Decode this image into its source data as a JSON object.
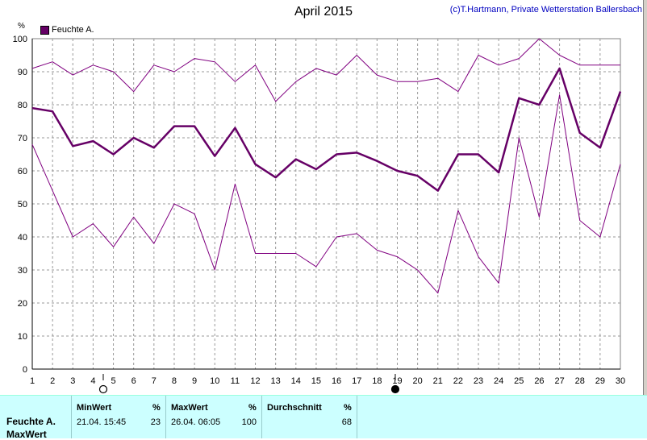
{
  "chart_data": {
    "type": "line",
    "title": "April 2015",
    "credit": "(c)T.Hartmann, Private Wetterstation Ballersbach",
    "unit": "%",
    "legend": "Feuchte A.",
    "ylim": [
      0,
      100
    ],
    "yticks": [
      0,
      10,
      20,
      30,
      40,
      50,
      60,
      70,
      80,
      90,
      100
    ],
    "x": [
      1,
      2,
      3,
      4,
      5,
      6,
      7,
      8,
      9,
      10,
      11,
      12,
      13,
      14,
      15,
      16,
      17,
      18,
      19,
      20,
      21,
      22,
      23,
      24,
      25,
      26,
      27,
      28,
      29,
      30
    ],
    "grid": true,
    "series": [
      {
        "role": "max",
        "color": "#800080",
        "width": 1,
        "values": [
          91,
          93,
          89,
          92,
          90,
          84,
          92,
          90,
          94,
          93,
          87,
          92,
          81,
          87,
          91,
          89,
          95,
          89,
          87,
          87,
          88,
          84,
          95,
          92,
          94,
          100,
          95,
          92,
          92,
          92
        ]
      },
      {
        "role": "mean",
        "color": "#660066",
        "width": 2.5,
        "values": [
          79,
          78,
          67.5,
          69,
          65,
          70,
          67,
          73.5,
          73.5,
          64.5,
          73,
          62,
          58,
          63.5,
          60.5,
          65,
          65.5,
          63,
          60,
          58.5,
          54,
          65,
          65,
          59.5,
          82,
          80,
          91,
          71.5,
          67,
          84
        ]
      },
      {
        "role": "min",
        "color": "#800080",
        "width": 1,
        "values": [
          68,
          54,
          40,
          44,
          37,
          46,
          38,
          50,
          47,
          30,
          56,
          35,
          35,
          35,
          31,
          40,
          41,
          36,
          34,
          30,
          23,
          48,
          34,
          26,
          70,
          46,
          83,
          45,
          40,
          62
        ]
      }
    ],
    "moon_markers": [
      {
        "day": 4.5,
        "type": "full-moon"
      },
      {
        "day": 18.9,
        "type": "new-moon"
      }
    ]
  },
  "footer": {
    "row_label_1": "Feuchte A.",
    "row_label_2": "MaxWert",
    "min_header": "MinWert",
    "min_unit": "%",
    "min_datetime": "21.04.  15:45",
    "min_value": "23",
    "max_header": "MaxWert",
    "max_unit": "%",
    "max_datetime": "26.04.  06:05",
    "max_value": "100",
    "avg_header": "Durchschnitt",
    "avg_unit": "%",
    "avg_value": "68"
  }
}
